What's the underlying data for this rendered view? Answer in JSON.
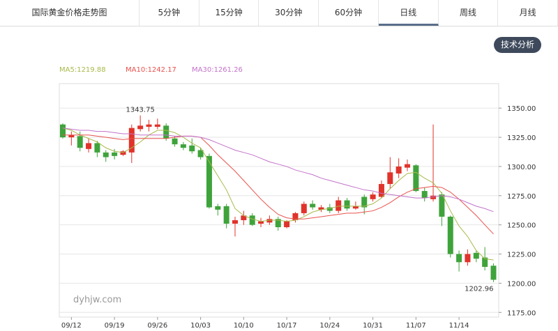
{
  "tabs": [
    "国际黄金价格走势图",
    "5分钟",
    "15分钟",
    "30分钟",
    "60分钟",
    "日线",
    "周线",
    "月线"
  ],
  "active_tab": 5,
  "button": "技术分析",
  "chart_data": {
    "type": "candlestick",
    "watermark": "dyhjw.com",
    "categories": [
      null,
      "09/12",
      null,
      null,
      null,
      null,
      "09/19",
      null,
      null,
      null,
      null,
      "09/26",
      null,
      null,
      null,
      null,
      "10/03",
      null,
      null,
      null,
      null,
      "10/10",
      null,
      null,
      null,
      null,
      "10/17",
      null,
      null,
      null,
      null,
      "10/24",
      null,
      null,
      null,
      null,
      "10/31",
      null,
      null,
      null,
      null,
      "11/07",
      null,
      null,
      null,
      null,
      "11/14",
      null,
      null,
      null,
      null
    ],
    "open": [
      1336,
      1325,
      1326,
      1315,
      1320,
      1312,
      1312,
      1310,
      1312,
      1332,
      1334,
      1334,
      1335,
      1324,
      1319,
      1318,
      1314,
      1309,
      1266,
      1266,
      1251,
      1254,
      1258,
      1251,
      1252,
      1255,
      1248,
      1254,
      1260,
      1268,
      1263,
      1265,
      1262,
      1271,
      1264,
      1274,
      1272,
      1274,
      1285,
      1294,
      1299,
      1301,
      1279,
      1272,
      1276,
      1257,
      1225,
      1218,
      1226,
      1222,
      1215
    ],
    "high": [
      1337,
      1330,
      1330,
      1324,
      1322,
      1314,
      1315,
      1314,
      1336,
      1343.75,
      1340,
      1341,
      1337,
      1326,
      1321,
      1324,
      1316,
      1311,
      1268,
      1268,
      1257,
      1262,
      1260,
      1256,
      1258,
      1257,
      1254,
      1261,
      1270,
      1271,
      1267,
      1268,
      1274,
      1273,
      1270,
      1276,
      1278,
      1288,
      1308,
      1307,
      1306,
      1302,
      1282,
      1336,
      1278,
      1258,
      1228,
      1229,
      1228,
      1231,
      1217
    ],
    "low": [
      1324,
      1318,
      1313,
      1312,
      1308,
      1304,
      1306,
      1309,
      1303,
      1330,
      1330,
      1332,
      1322,
      1317,
      1314,
      1311,
      1306,
      1264,
      1258,
      1247,
      1240,
      1250,
      1249,
      1248,
      1250,
      1245,
      1247,
      1252,
      1258,
      1263,
      1261,
      1260,
      1260,
      1262,
      1263,
      1259,
      1270,
      1273,
      1281,
      1290,
      1296,
      1278,
      1270,
      1270,
      1249,
      1222,
      1210,
      1215,
      1218,
      1211,
      1201
    ],
    "close": [
      1325,
      1327,
      1316,
      1320,
      1312,
      1308,
      1309,
      1313,
      1333,
      1335,
      1336,
      1336,
      1324,
      1319,
      1316,
      1313,
      1308,
      1265,
      1263,
      1251,
      1254,
      1258,
      1250,
      1253,
      1255,
      1248,
      1253,
      1260,
      1268,
      1265,
      1265,
      1262,
      1271,
      1264,
      1266,
      1265,
      1276,
      1285,
      1295,
      1300,
      1302,
      1279,
      1273,
      1275,
      1257,
      1225,
      1218,
      1225,
      1221,
      1214,
      1202.96
    ],
    "up_color": "#e0332b",
    "down_color": "#3fa33b",
    "lines": [
      {
        "label": "MA5:1219.88",
        "color": "#a9b94a",
        "values": [
          1333,
          1331,
          1327,
          1324,
          1321,
          1316,
          1313,
          1312,
          1316,
          1321,
          1327,
          1331,
          1331,
          1329,
          1325,
          1320,
          1316,
          1304,
          1292,
          1280,
          1264,
          1258,
          1255,
          1253,
          1254,
          1254,
          1253,
          1254,
          1257,
          1261,
          1263,
          1264,
          1266,
          1266,
          1266,
          1266,
          1268,
          1273,
          1281,
          1288,
          1294,
          1295,
          1290,
          1286,
          1277,
          1262,
          1249,
          1240,
          1228,
          1221,
          1219.88
        ]
      },
      {
        "label": "MA10:1242.17",
        "color": "#e8514d",
        "values": [
          1327,
          1327,
          1327,
          1327,
          1326,
          1325,
          1324,
          1323,
          1324,
          1324,
          1324,
          1324,
          1324,
          1325,
          1326,
          1326,
          1325,
          1318,
          1310,
          1303,
          1296,
          1288,
          1280,
          1272,
          1265,
          1259,
          1256,
          1255,
          1255,
          1256,
          1257,
          1258,
          1259,
          1260,
          1260,
          1261,
          1262,
          1265,
          1269,
          1274,
          1278,
          1281,
          1282,
          1283,
          1282,
          1278,
          1272,
          1265,
          1258,
          1250,
          1242.17
        ]
      },
      {
        "label": "MA30:1261.26",
        "color": "#c272c9",
        "values": [
          1333,
          1332,
          1331,
          1331,
          1330,
          1330,
          1329,
          1328,
          1328,
          1327,
          1327,
          1327,
          1327,
          1326,
          1326,
          1326,
          1325,
          1323,
          1320,
          1317,
          1314,
          1312,
          1310,
          1307,
          1304,
          1302,
          1300,
          1297,
          1295,
          1293,
          1290,
          1288,
          1286,
          1284,
          1282,
          1280,
          1279,
          1277,
          1276,
          1275,
          1274,
          1273,
          1273,
          1274,
          1275,
          1274,
          1272,
          1269,
          1266,
          1264,
          1261.26
        ]
      }
    ],
    "annotations": [
      {
        "label": "1343.75",
        "value": 1343.75
      },
      {
        "label": "1202.96",
        "value": 1202.96
      }
    ],
    "ylim": [
      1171,
      1371
    ],
    "yticks": [
      {
        "value": 1175,
        "label": "1175.00"
      },
      {
        "value": 1200,
        "label": "1200.00"
      },
      {
        "value": 1225,
        "label": "1225.00"
      },
      {
        "value": 1250,
        "label": "1250.00"
      },
      {
        "value": 1275,
        "label": "1275.00"
      },
      {
        "value": 1300,
        "label": "1300.00"
      },
      {
        "value": 1325,
        "label": "1325.00"
      },
      {
        "value": 1350,
        "label": "1350.00"
      }
    ],
    "grid": true
  }
}
